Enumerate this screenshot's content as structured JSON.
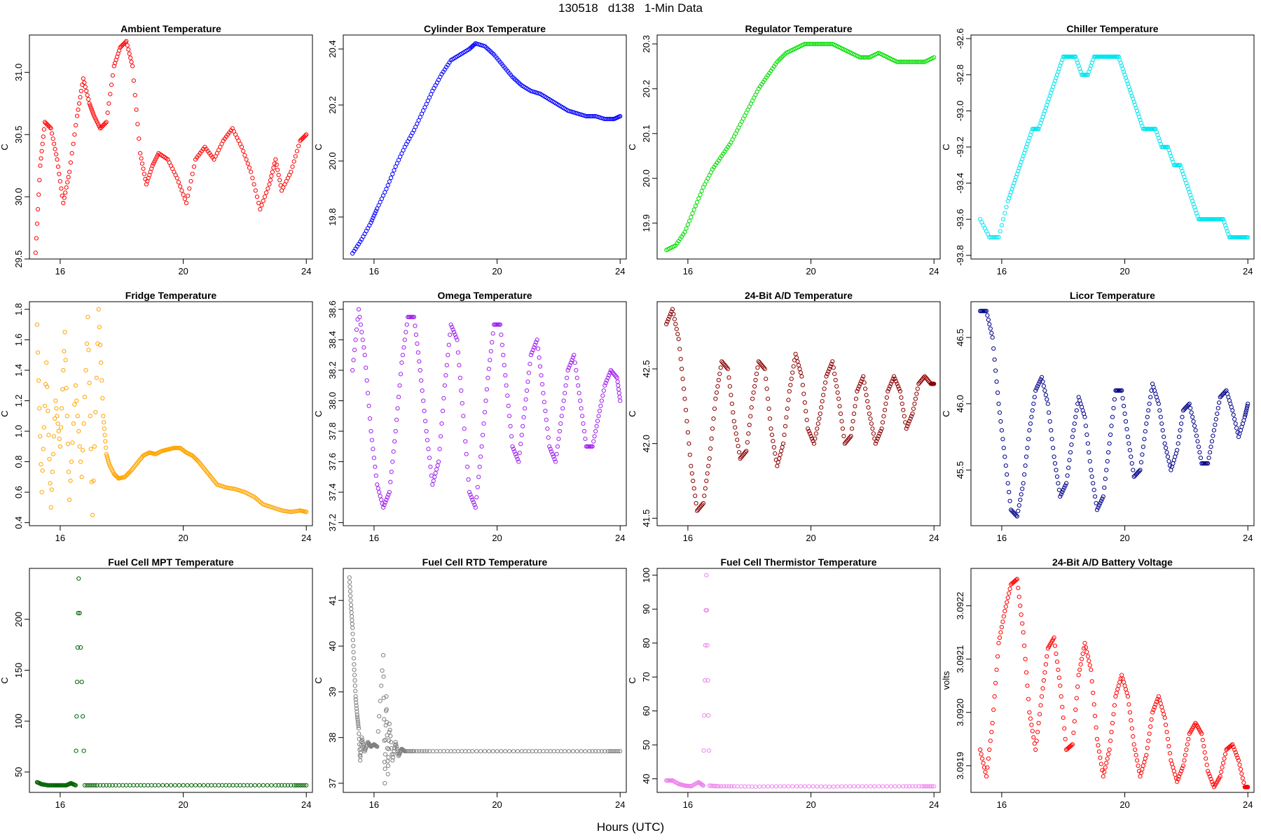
{
  "figure": {
    "title": "130518   d138   1-Min Data",
    "xlabel": "Hours (UTC)"
  },
  "chart_data": [
    {
      "type": "scatter",
      "title": "Ambient Temperature",
      "xlabel": "Hours (UTC)",
      "ylabel": "C",
      "color": "#ff0000",
      "xlim": [
        15,
        24.2
      ],
      "ylim": [
        29.5,
        31.3
      ],
      "xticks": [
        16,
        20,
        24
      ],
      "yticks": [
        29.5,
        30.0,
        30.5,
        31.0
      ],
      "ytick_labels": [
        "29.5",
        "30.0",
        "30.5",
        "31.0"
      ],
      "x": [
        15.2,
        15.35,
        15.5,
        15.7,
        15.9,
        16.1,
        16.3,
        16.55,
        16.75,
        16.95,
        17.1,
        17.3,
        17.5,
        17.75,
        17.95,
        18.15,
        18.35,
        18.6,
        18.8,
        19.0,
        19.2,
        19.5,
        19.8,
        20.1,
        20.4,
        20.7,
        21.0,
        21.3,
        21.6,
        21.9,
        22.2,
        22.5,
        22.8,
        23.0,
        23.2,
        23.5,
        23.8,
        24.0
      ],
      "y": [
        29.55,
        30.25,
        30.6,
        30.55,
        30.3,
        29.95,
        30.2,
        30.65,
        30.95,
        30.75,
        30.65,
        30.55,
        30.6,
        31.05,
        31.2,
        31.25,
        31.05,
        30.35,
        30.1,
        30.25,
        30.35,
        30.3,
        30.15,
        29.95,
        30.3,
        30.4,
        30.3,
        30.45,
        30.55,
        30.4,
        30.2,
        29.9,
        30.1,
        30.3,
        30.05,
        30.2,
        30.45,
        30.5
      ]
    },
    {
      "type": "scatter",
      "title": "Cylinder Box Temperature",
      "xlabel": "Hours (UTC)",
      "ylabel": "C",
      "color": "#0000ff",
      "xlim": [
        15,
        24.2
      ],
      "ylim": [
        19.65,
        20.45
      ],
      "xticks": [
        16,
        20,
        24
      ],
      "yticks": [
        19.8,
        20.0,
        20.2,
        20.4
      ],
      "ytick_labels": [
        "19.8",
        "20.0",
        "20.2",
        "20.4"
      ],
      "x": [
        15.3,
        15.6,
        15.9,
        16.1,
        16.4,
        16.7,
        17.0,
        17.3,
        17.6,
        17.9,
        18.2,
        18.5,
        18.8,
        19.1,
        19.3,
        19.6,
        19.9,
        20.2,
        20.5,
        20.8,
        21.1,
        21.4,
        21.7,
        22.0,
        22.3,
        22.6,
        22.9,
        23.2,
        23.5,
        23.8,
        24.0
      ],
      "y": [
        19.67,
        19.72,
        19.78,
        19.83,
        19.9,
        19.98,
        20.05,
        20.11,
        20.18,
        20.25,
        20.31,
        20.36,
        20.38,
        20.4,
        20.42,
        20.41,
        20.38,
        20.34,
        20.3,
        20.27,
        20.25,
        20.24,
        20.22,
        20.2,
        20.18,
        20.17,
        20.16,
        20.16,
        20.15,
        20.15,
        20.16
      ]
    },
    {
      "type": "scatter",
      "title": "Regulator Temperature",
      "xlabel": "Hours (UTC)",
      "ylabel": "C",
      "color": "#00dd00",
      "xlim": [
        15,
        24.2
      ],
      "ylim": [
        19.82,
        20.32
      ],
      "xticks": [
        16,
        20,
        24
      ],
      "yticks": [
        19.9,
        20.0,
        20.1,
        20.2,
        20.3
      ],
      "ytick_labels": [
        "19.9",
        "20.0",
        "20.1",
        "20.2",
        "20.3"
      ],
      "x": [
        15.3,
        15.6,
        15.9,
        16.2,
        16.5,
        16.8,
        17.1,
        17.4,
        17.7,
        18.0,
        18.3,
        18.6,
        18.9,
        19.2,
        19.5,
        19.8,
        20.1,
        20.4,
        20.7,
        21.0,
        21.3,
        21.6,
        21.9,
        22.2,
        22.5,
        22.8,
        23.1,
        23.4,
        23.7,
        24.0
      ],
      "y": [
        19.84,
        19.85,
        19.88,
        19.93,
        19.98,
        20.02,
        20.05,
        20.08,
        20.12,
        20.16,
        20.2,
        20.23,
        20.26,
        20.28,
        20.29,
        20.3,
        20.3,
        20.3,
        20.3,
        20.29,
        20.28,
        20.27,
        20.27,
        20.28,
        20.27,
        20.26,
        20.26,
        20.26,
        20.26,
        20.27
      ]
    },
    {
      "type": "scatter",
      "title": "Chiller Temperature",
      "xlabel": "Hours (UTC)",
      "ylabel": "C",
      "color": "#00e5ee",
      "xlim": [
        15,
        24.2
      ],
      "ylim": [
        -93.82,
        -92.58
      ],
      "xticks": [
        16,
        20,
        24
      ],
      "yticks": [
        -93.8,
        -93.6,
        -93.4,
        -93.2,
        -93.0,
        -92.8,
        -92.6
      ],
      "ytick_labels": [
        "-93.8",
        "-93.6",
        "-93.4",
        "-93.2",
        "-93.0",
        "-92.8",
        "-92.6"
      ],
      "x": [
        15.3,
        15.6,
        15.9,
        16.2,
        16.4,
        16.6,
        16.8,
        17.0,
        17.2,
        17.4,
        17.6,
        17.8,
        18.0,
        18.2,
        18.4,
        18.6,
        18.8,
        19.0,
        19.2,
        19.4,
        19.6,
        19.8,
        20.0,
        20.2,
        20.4,
        20.6,
        20.8,
        21.0,
        21.2,
        21.4,
        21.6,
        21.8,
        22.0,
        22.2,
        22.4,
        22.6,
        22.8,
        23.0,
        23.2,
        23.4,
        23.6,
        23.8,
        24.0
      ],
      "y": [
        -93.6,
        -93.7,
        -93.7,
        -93.5,
        -93.4,
        -93.3,
        -93.2,
        -93.1,
        -93.1,
        -93.0,
        -92.9,
        -92.8,
        -92.7,
        -92.7,
        -92.7,
        -92.8,
        -92.8,
        -92.7,
        -92.7,
        -92.7,
        -92.7,
        -92.7,
        -92.8,
        -92.9,
        -93.0,
        -93.1,
        -93.1,
        -93.1,
        -93.2,
        -93.2,
        -93.3,
        -93.3,
        -93.4,
        -93.5,
        -93.6,
        -93.6,
        -93.6,
        -93.6,
        -93.6,
        -93.7,
        -93.7,
        -93.7,
        -93.7
      ]
    },
    {
      "type": "scatter",
      "title": "Fridge Temperature",
      "xlabel": "Hours (UTC)",
      "ylabel": "C",
      "color": "#ffa500",
      "xlim": [
        15,
        24.2
      ],
      "ylim": [
        0.38,
        1.85
      ],
      "xticks": [
        16,
        20,
        24
      ],
      "yticks": [
        0.4,
        0.6,
        0.8,
        1.0,
        1.2,
        1.4,
        1.6,
        1.8
      ],
      "ytick_labels": [
        "0.4",
        "0.6",
        "0.8",
        "1.0",
        "1.2",
        "1.4",
        "1.6",
        "1.8"
      ],
      "x": [
        15.25,
        15.4,
        15.55,
        15.7,
        15.85,
        16.0,
        16.15,
        16.3,
        16.5,
        16.7,
        16.9,
        17.05,
        17.25,
        17.4,
        17.5,
        17.6,
        17.75,
        17.9,
        18.1,
        18.3,
        18.5,
        18.7,
        18.9,
        19.1,
        19.3,
        19.5,
        19.7,
        19.9,
        20.1,
        20.3,
        20.5,
        20.7,
        20.9,
        21.1,
        21.4,
        21.7,
        22.0,
        22.3,
        22.6,
        22.9,
        23.2,
        23.5,
        23.8,
        24.0
      ],
      "y": [
        1.7,
        0.6,
        1.45,
        0.5,
        1.2,
        0.9,
        1.65,
        0.55,
        1.3,
        0.7,
        1.75,
        0.45,
        1.8,
        1.1,
        0.85,
        0.78,
        0.72,
        0.69,
        0.7,
        0.74,
        0.79,
        0.84,
        0.86,
        0.85,
        0.87,
        0.88,
        0.89,
        0.89,
        0.86,
        0.84,
        0.8,
        0.75,
        0.7,
        0.65,
        0.63,
        0.62,
        0.6,
        0.57,
        0.52,
        0.5,
        0.48,
        0.47,
        0.48,
        0.47
      ]
    },
    {
      "type": "scatter",
      "title": "Omega Temperature",
      "xlabel": "Hours (UTC)",
      "ylabel": "C",
      "color": "#a020f0",
      "xlim": [
        15,
        24.2
      ],
      "ylim": [
        37.18,
        38.65
      ],
      "xticks": [
        16,
        20,
        24
      ],
      "yticks": [
        37.2,
        37.4,
        37.6,
        37.8,
        38.0,
        38.2,
        38.4,
        38.6
      ],
      "ytick_labels": [
        "37.2",
        "37.4",
        "37.6",
        "37.8",
        "38.0",
        "38.2",
        "38.4",
        "38.6"
      ],
      "x": [
        15.3,
        15.5,
        15.7,
        15.9,
        16.1,
        16.3,
        16.5,
        16.7,
        16.9,
        17.1,
        17.3,
        17.5,
        17.7,
        17.9,
        18.1,
        18.3,
        18.5,
        18.7,
        18.9,
        19.1,
        19.3,
        19.5,
        19.7,
        19.9,
        20.1,
        20.3,
        20.5,
        20.7,
        20.9,
        21.1,
        21.3,
        21.5,
        21.7,
        21.9,
        22.1,
        22.3,
        22.5,
        22.7,
        22.9,
        23.1,
        23.3,
        23.5,
        23.7,
        23.9,
        24.0
      ],
      "y": [
        38.2,
        38.6,
        38.3,
        37.8,
        37.45,
        37.3,
        37.4,
        37.8,
        38.25,
        38.55,
        38.55,
        38.2,
        37.8,
        37.45,
        37.6,
        38.1,
        38.5,
        38.4,
        37.9,
        37.4,
        37.3,
        37.7,
        38.15,
        38.5,
        38.5,
        38.1,
        37.7,
        37.6,
        37.95,
        38.3,
        38.4,
        38.05,
        37.7,
        37.6,
        37.9,
        38.2,
        38.3,
        38.0,
        37.7,
        37.7,
        37.9,
        38.1,
        38.2,
        38.15,
        38.0
      ]
    },
    {
      "type": "scatter",
      "title": "24-Bit A/D Temperature",
      "xlabel": "Hours (UTC)",
      "ylabel": "C",
      "color": "#8b0000",
      "xlim": [
        15,
        24.2
      ],
      "ylim": [
        41.45,
        42.95
      ],
      "xticks": [
        16,
        20,
        24
      ],
      "yticks": [
        41.5,
        42.0,
        42.5
      ],
      "ytick_labels": [
        "41.5",
        "42.0",
        "42.5"
      ],
      "x": [
        15.3,
        15.5,
        15.7,
        15.9,
        16.1,
        16.3,
        16.5,
        16.7,
        16.9,
        17.1,
        17.3,
        17.5,
        17.7,
        17.9,
        18.1,
        18.3,
        18.5,
        18.7,
        18.9,
        19.1,
        19.3,
        19.5,
        19.7,
        19.9,
        20.1,
        20.3,
        20.5,
        20.7,
        20.9,
        21.1,
        21.3,
        21.5,
        21.7,
        21.9,
        22.1,
        22.3,
        22.5,
        22.7,
        22.9,
        23.1,
        23.3,
        23.5,
        23.7,
        23.9,
        24.0
      ],
      "y": [
        42.8,
        42.9,
        42.7,
        42.3,
        41.85,
        41.55,
        41.6,
        41.9,
        42.3,
        42.55,
        42.5,
        42.15,
        41.9,
        41.95,
        42.3,
        42.55,
        42.5,
        42.1,
        41.85,
        42.0,
        42.35,
        42.6,
        42.45,
        42.1,
        42.0,
        42.2,
        42.45,
        42.55,
        42.3,
        42.0,
        42.05,
        42.35,
        42.45,
        42.2,
        42.0,
        42.1,
        42.35,
        42.45,
        42.35,
        42.1,
        42.2,
        42.4,
        42.45,
        42.4,
        42.4
      ]
    },
    {
      "type": "scatter",
      "title": "Licor Temperature",
      "xlabel": "Hours (UTC)",
      "ylabel": "C",
      "color": "#00008b",
      "xlim": [
        15,
        24.2
      ],
      "ylim": [
        45.08,
        46.77
      ],
      "xticks": [
        16,
        20,
        24
      ],
      "yticks": [
        45.5,
        46.0,
        46.5
      ],
      "ytick_labels": [
        "45.5",
        "46.0",
        "46.5"
      ],
      "x": [
        15.3,
        15.5,
        15.7,
        15.9,
        16.1,
        16.3,
        16.5,
        16.7,
        16.9,
        17.1,
        17.3,
        17.5,
        17.7,
        17.9,
        18.1,
        18.3,
        18.5,
        18.7,
        18.9,
        19.1,
        19.3,
        19.5,
        19.7,
        19.9,
        20.1,
        20.3,
        20.5,
        20.7,
        20.9,
        21.1,
        21.3,
        21.5,
        21.7,
        21.9,
        22.1,
        22.3,
        22.5,
        22.7,
        22.9,
        23.1,
        23.3,
        23.5,
        23.7,
        23.9,
        24.0
      ],
      "y": [
        46.7,
        46.7,
        46.5,
        46.0,
        45.6,
        45.2,
        45.15,
        45.4,
        45.8,
        46.1,
        46.2,
        46.0,
        45.6,
        45.3,
        45.4,
        45.75,
        46.05,
        45.9,
        45.5,
        45.2,
        45.3,
        45.7,
        46.1,
        46.1,
        45.75,
        45.45,
        45.5,
        45.85,
        46.15,
        46.0,
        45.7,
        45.5,
        45.65,
        45.95,
        46.0,
        45.8,
        45.55,
        45.55,
        45.8,
        46.05,
        46.1,
        45.95,
        45.75,
        45.9,
        46.0
      ]
    },
    {
      "type": "scatter",
      "title": "Fuel Cell MPT Temperature",
      "xlabel": "Hours (UTC)",
      "ylabel": "C",
      "color": "#006400",
      "xlim": [
        15,
        24.2
      ],
      "ylim": [
        30,
        250
      ],
      "xticks": [
        16,
        20,
        24
      ],
      "yticks": [
        50,
        100,
        150,
        200
      ],
      "ytick_labels": [
        "50",
        "100",
        "150",
        "200"
      ],
      "x": [
        15.25,
        15.4,
        15.6,
        15.8,
        16.0,
        16.2,
        16.35,
        16.5,
        16.6,
        16.8,
        17.2,
        17.8,
        18.5,
        19.2,
        20.0,
        20.8,
        21.5,
        22.2,
        23.0,
        23.6,
        24.0
      ],
      "y": [
        40,
        38,
        37,
        37,
        37,
        37,
        39,
        37,
        240,
        37,
        37,
        37,
        37,
        37,
        37,
        37,
        37,
        37,
        37,
        37,
        37
      ]
    },
    {
      "type": "scatter",
      "title": "Fuel Cell RTD Temperature",
      "xlabel": "Hours (UTC)",
      "ylabel": "C",
      "color": "#808080",
      "xlim": [
        15,
        24.2
      ],
      "ylim": [
        36.8,
        41.7
      ],
      "xticks": [
        16,
        20,
        24
      ],
      "yticks": [
        37,
        38,
        39,
        40,
        41
      ],
      "ytick_labels": [
        "37",
        "38",
        "39",
        "40",
        "41"
      ],
      "x": [
        15.2,
        15.25,
        15.3,
        15.35,
        15.4,
        15.45,
        15.5,
        15.55,
        15.6,
        15.7,
        15.8,
        15.9,
        16.0,
        16.1,
        16.3,
        16.35,
        16.4,
        16.45,
        16.5,
        16.6,
        16.7,
        16.8,
        16.9,
        17.0,
        17.3,
        17.8,
        18.5,
        19.2,
        20.0,
        20.8,
        21.5,
        22.2,
        23.0,
        23.6,
        24.0
      ],
      "y": [
        41.5,
        40.9,
        40.4,
        39.6,
        38.9,
        38.5,
        38.2,
        37.5,
        38.0,
        37.7,
        37.9,
        37.8,
        37.85,
        37.8,
        39.8,
        37.0,
        38.9,
        37.2,
        38.3,
        37.5,
        37.9,
        37.6,
        37.75,
        37.7,
        37.7,
        37.7,
        37.7,
        37.7,
        37.7,
        37.7,
        37.7,
        37.7,
        37.7,
        37.7,
        37.7
      ]
    },
    {
      "type": "scatter",
      "title": "Fuel Cell Thermistor Temperature",
      "xlabel": "Hours (UTC)",
      "ylabel": "C",
      "color": "#ee82ee",
      "xlim": [
        15,
        24.2
      ],
      "ylim": [
        36,
        102
      ],
      "xticks": [
        16,
        20,
        24
      ],
      "yticks": [
        40,
        50,
        60,
        70,
        80,
        90,
        100
      ],
      "ytick_labels": [
        "40",
        "50",
        "60",
        "70",
        "80",
        "90",
        "100"
      ],
      "x": [
        15.3,
        15.5,
        15.7,
        15.9,
        16.1,
        16.35,
        16.5,
        16.6,
        16.7,
        17.0,
        17.5,
        18.2,
        19.0,
        19.8,
        20.6,
        21.4,
        22.2,
        23.0,
        23.6,
        24.0
      ],
      "y": [
        39.5,
        39.5,
        38.5,
        38,
        37.8,
        39,
        38,
        100,
        38,
        37.8,
        37.8,
        37.7,
        37.8,
        37.8,
        37.7,
        37.8,
        37.8,
        37.8,
        37.8,
        37.8
      ]
    },
    {
      "type": "scatter",
      "title": "24-Bit A/D Battery Voltage",
      "xlabel": "Hours (UTC)",
      "ylabel": "volts",
      "color": "#ff0000",
      "xlim": [
        15,
        24.2
      ],
      "ylim": [
        3.09185,
        3.09227
      ],
      "xticks": [
        16,
        20,
        24
      ],
      "yticks": [
        3.0919,
        3.092,
        3.0921,
        3.0922
      ],
      "ytick_labels": [
        "3.0919",
        "3.0920",
        "3.0921",
        "3.0922"
      ],
      "x": [
        15.3,
        15.5,
        15.7,
        15.9,
        16.1,
        16.3,
        16.5,
        16.7,
        16.9,
        17.1,
        17.3,
        17.5,
        17.7,
        17.9,
        18.1,
        18.3,
        18.5,
        18.7,
        18.9,
        19.1,
        19.3,
        19.5,
        19.7,
        19.9,
        20.1,
        20.3,
        20.5,
        20.7,
        20.9,
        21.1,
        21.3,
        21.5,
        21.7,
        21.9,
        22.1,
        22.3,
        22.5,
        22.7,
        22.9,
        23.1,
        23.3,
        23.5,
        23.7,
        23.9,
        24.0
      ],
      "y": [
        3.09193,
        3.09188,
        3.09198,
        3.09213,
        3.09219,
        3.09224,
        3.09225,
        3.09215,
        3.092,
        3.09193,
        3.09203,
        3.09212,
        3.09214,
        3.09205,
        3.09193,
        3.09194,
        3.09207,
        3.09213,
        3.09208,
        3.09195,
        3.09188,
        3.09193,
        3.09203,
        3.09207,
        3.09203,
        3.09194,
        3.09188,
        3.09192,
        3.092,
        3.09203,
        3.09199,
        3.09191,
        3.09187,
        3.0919,
        3.09196,
        3.09198,
        3.09196,
        3.09189,
        3.09186,
        3.09188,
        3.09193,
        3.09194,
        3.09191,
        3.09186,
        3.09186
      ]
    }
  ]
}
